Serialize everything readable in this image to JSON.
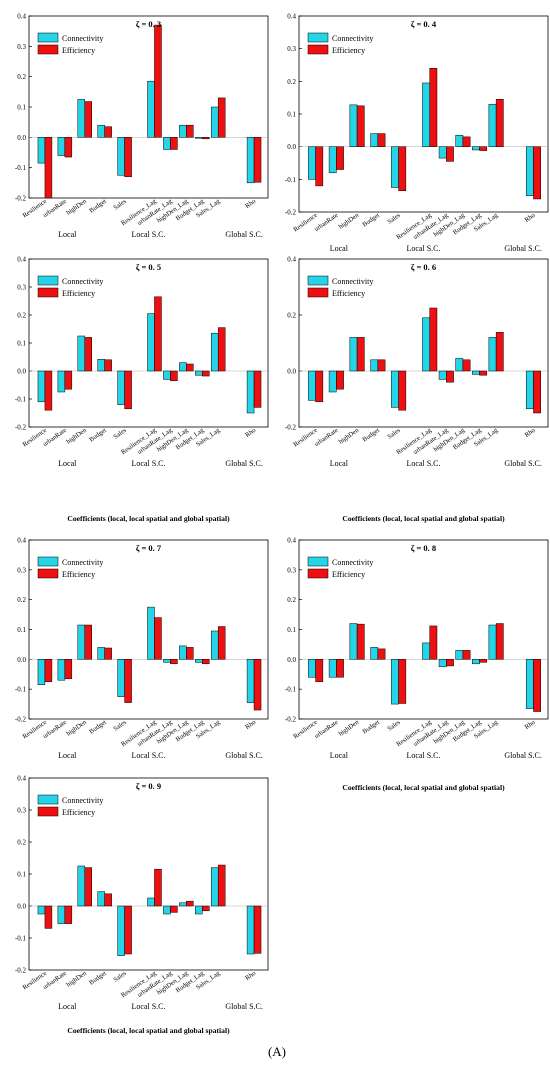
{
  "figure_label": "(A)",
  "coef_caption": "Coefficients (local, local spatial and global spatial)",
  "legend": {
    "connectivity": "Connectivity",
    "efficiency": "Efficiency"
  },
  "colors": {
    "connectivity": "#25d4e6",
    "efficiency": "#ee1010"
  },
  "chart_data": [
    {
      "type": "bar",
      "title": "ζ = 0. 3",
      "categories": [
        "Resilience",
        "urbanRate",
        "highDen",
        "Budget",
        "Sales",
        "Resilience_Lag",
        "urbanRate_Lag",
        "highDen_Lag",
        "Budget_Lag",
        "Sales_Lag",
        "Rho"
      ],
      "groups": [
        "Local",
        "Local S.C.",
        "Global S.C."
      ],
      "ylim": [
        -0.2,
        0.4
      ],
      "yticks": [
        -0.2,
        -0.1,
        0.0,
        0.1,
        0.2,
        0.3,
        0.4
      ],
      "series": [
        {
          "name": "Connectivity",
          "values": [
            -0.085,
            -0.06,
            0.125,
            0.04,
            -0.125,
            0.185,
            -0.04,
            0.04,
            -0.003,
            0.1,
            -0.15
          ]
        },
        {
          "name": "Efficiency",
          "values": [
            -0.2,
            -0.065,
            0.118,
            0.035,
            -0.13,
            0.37,
            -0.04,
            0.04,
            -0.005,
            0.13,
            -0.148
          ]
        }
      ]
    },
    {
      "type": "bar",
      "title": "ζ = 0. 4",
      "categories": [
        "Resilience",
        "urbanRate",
        "highDen",
        "Budget",
        "Sales",
        "Resilience_Lag",
        "urbanRate_Lag",
        "highDen_Lag",
        "Budget_Lag",
        "Sales_Lag",
        "Rho"
      ],
      "groups": [
        "Local",
        "Local S.C.",
        "Global S.C."
      ],
      "ylim": [
        -0.2,
        0.4
      ],
      "yticks": [
        -0.2,
        -0.1,
        0.0,
        0.1,
        0.2,
        0.3,
        0.4
      ],
      "series": [
        {
          "name": "Connectivity",
          "values": [
            -0.1,
            -0.08,
            0.128,
            0.04,
            -0.125,
            0.195,
            -0.035,
            0.035,
            -0.01,
            0.13,
            -0.15
          ]
        },
        {
          "name": "Efficiency",
          "values": [
            -0.12,
            -0.07,
            0.125,
            0.04,
            -0.135,
            0.24,
            -0.045,
            0.03,
            -0.012,
            0.145,
            -0.16
          ]
        }
      ]
    },
    {
      "type": "bar",
      "title": "ζ = 0.   5",
      "categories": [
        "Resilience",
        "urbanRate",
        "highDen",
        "Budget",
        "Sales",
        "Resilience_Lag",
        "urbanRate_Lag",
        "highDen_Lag",
        "Budget_Lag",
        "Sales_Lag",
        "Rho"
      ],
      "groups": [
        "Local",
        "Local S.C.",
        "Global S.C."
      ],
      "ylim": [
        -0.2,
        0.4
      ],
      "yticks": [
        -0.2,
        -0.1,
        0.0,
        0.1,
        0.2,
        0.3,
        0.4
      ],
      "series": [
        {
          "name": "Connectivity",
          "values": [
            -0.11,
            -0.075,
            0.125,
            0.042,
            -0.12,
            0.205,
            -0.03,
            0.03,
            -0.015,
            0.135,
            -0.15
          ]
        },
        {
          "name": "Efficiency",
          "values": [
            -0.14,
            -0.065,
            0.12,
            0.04,
            -0.135,
            0.265,
            -0.035,
            0.025,
            -0.018,
            0.155,
            -0.13
          ]
        }
      ]
    },
    {
      "type": "bar",
      "title": "ζ = 0.   6",
      "categories": [
        "Resilience",
        "urbanRate",
        "highDen",
        "Budget",
        "Sales",
        "Resilience_Lag",
        "urbanRate_Lag",
        "highDen_Lag",
        "Budget_Lag",
        "Sales_Lag",
        "Rho"
      ],
      "groups": [
        "Local",
        "Local S.C.",
        "Global S.C."
      ],
      "ylim": [
        -0.2,
        0.4
      ],
      "yticks": [
        -0.2,
        0.0,
        0.2,
        0.4
      ],
      "series": [
        {
          "name": "Connectivity",
          "values": [
            -0.105,
            -0.075,
            0.12,
            0.04,
            -0.13,
            0.19,
            -0.03,
            0.045,
            -0.012,
            0.12,
            -0.135
          ]
        },
        {
          "name": "Efficiency",
          "values": [
            -0.11,
            -0.065,
            0.12,
            0.04,
            -0.14,
            0.225,
            -0.04,
            0.04,
            -0.015,
            0.138,
            -0.15
          ]
        }
      ]
    },
    {
      "type": "bar",
      "title": "ζ = 0.   7",
      "categories": [
        "Resilience",
        "urbanRate",
        "highDen",
        "Budget",
        "Sales",
        "Resilience_Lag",
        "urbanRate_Lag",
        "highDen_Lag",
        "Budget_Lag",
        "Sales_Lag",
        "Rho"
      ],
      "groups": [
        "Local",
        "Local S.C.",
        "Global S.C."
      ],
      "ylim": [
        -0.2,
        0.4
      ],
      "yticks": [
        -0.2,
        -0.1,
        0.0,
        0.1,
        0.2,
        0.3,
        0.4
      ],
      "series": [
        {
          "name": "Connectivity",
          "values": [
            -0.085,
            -0.07,
            0.115,
            0.04,
            -0.125,
            0.175,
            -0.01,
            0.045,
            -0.01,
            0.095,
            -0.145
          ]
        },
        {
          "name": "Efficiency",
          "values": [
            -0.075,
            -0.065,
            0.115,
            0.038,
            -0.145,
            0.14,
            -0.015,
            0.04,
            -0.015,
            0.11,
            -0.17
          ]
        }
      ]
    },
    {
      "type": "bar",
      "title": "ζ = 0. 8",
      "categories": [
        "Resilience",
        "urbanRate",
        "highDen",
        "Budget",
        "Sales",
        "Resilience_Lag",
        "urbanRate_Lag",
        "highDen_Lag",
        "Budget_Lag",
        "Sales_Lag",
        "Rho"
      ],
      "groups": [
        "Local",
        "Local S.C.",
        "Global S.C."
      ],
      "ylim": [
        -0.2,
        0.4
      ],
      "yticks": [
        -0.2,
        -0.1,
        0.0,
        0.1,
        0.2,
        0.3,
        0.4
      ],
      "series": [
        {
          "name": "Connectivity",
          "values": [
            -0.06,
            -0.06,
            0.12,
            0.04,
            -0.15,
            0.055,
            -0.025,
            0.03,
            -0.015,
            0.115,
            -0.165
          ]
        },
        {
          "name": "Efficiency",
          "values": [
            -0.075,
            -0.06,
            0.118,
            0.035,
            -0.148,
            0.112,
            -0.022,
            0.03,
            -0.01,
            0.12,
            -0.175
          ]
        }
      ]
    },
    {
      "type": "bar",
      "title": "ζ = 0.   9",
      "categories": [
        "Resilience",
        "urbanRate",
        "highDen",
        "Budget",
        "Sales",
        "Resilience_Lag",
        "urbanRate_Lag",
        "highDen_Lag",
        "Budget_Lag",
        "Sales_Lag",
        "Rho"
      ],
      "groups": [
        "Local",
        "Local S.C.",
        "Global S.C."
      ],
      "ylim": [
        -0.2,
        0.4
      ],
      "yticks": [
        -0.2,
        -0.1,
        0.0,
        0.1,
        0.2,
        0.3,
        0.4
      ],
      "series": [
        {
          "name": "Connectivity",
          "values": [
            -0.025,
            -0.055,
            0.125,
            0.045,
            -0.155,
            0.025,
            -0.025,
            0.01,
            -0.025,
            0.12,
            -0.15
          ]
        },
        {
          "name": "Efficiency",
          "values": [
            -0.07,
            -0.055,
            0.12,
            0.038,
            -0.15,
            0.115,
            -0.02,
            0.015,
            -0.015,
            0.128,
            -0.148
          ]
        }
      ]
    }
  ]
}
